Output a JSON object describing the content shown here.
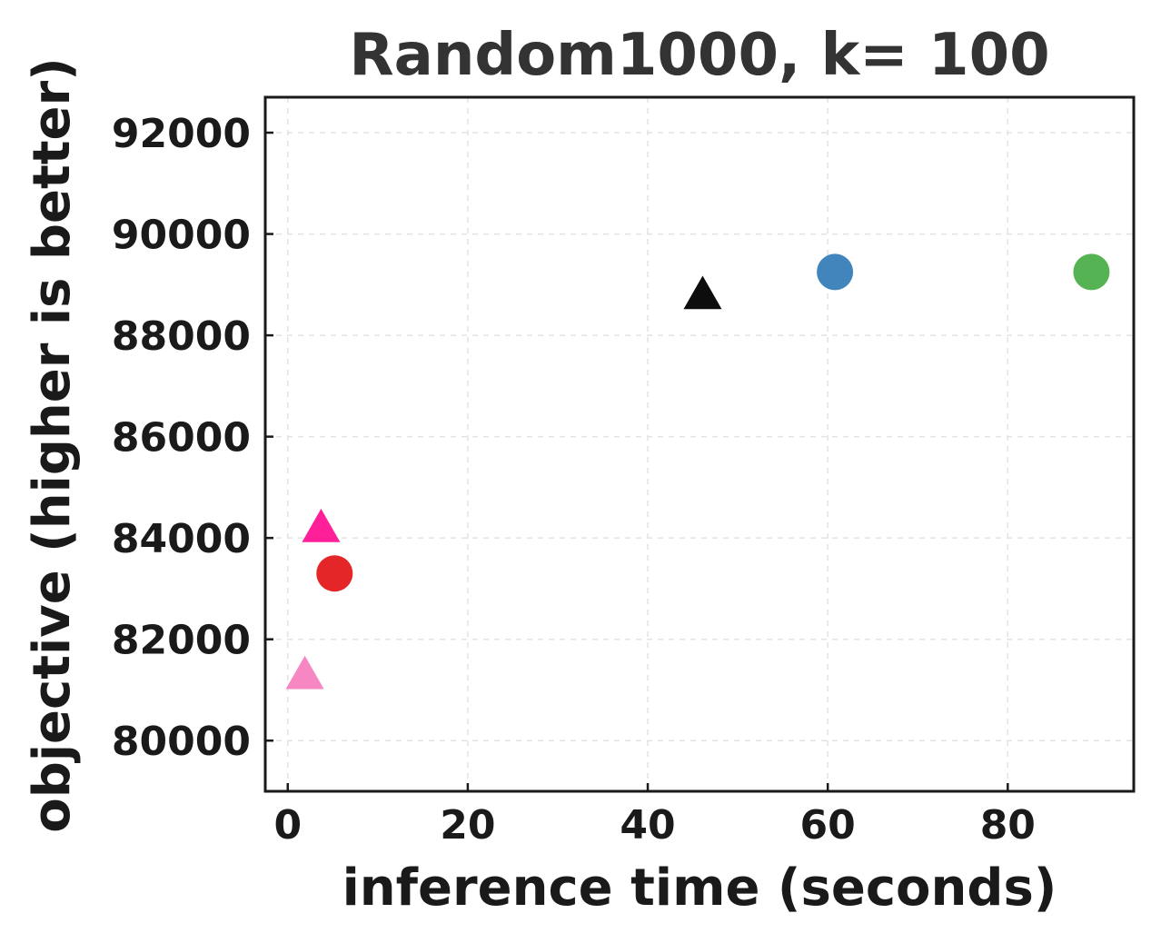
{
  "chart_data": {
    "type": "scatter",
    "title": "Random1000, k= 100",
    "xlabel": "inference time (seconds)",
    "ylabel": "objective (higher is better)",
    "xlim": [
      -2.5,
      94
    ],
    "ylim": [
      79000,
      92700
    ],
    "xticks": [
      0,
      20,
      40,
      60,
      80
    ],
    "yticks": [
      80000,
      82000,
      84000,
      86000,
      88000,
      90000,
      92000
    ],
    "xtick_labels": [
      "0",
      "20",
      "40",
      "60",
      "80"
    ],
    "ytick_labels": [
      "80000",
      "82000",
      "84000",
      "86000",
      "88000",
      "90000",
      "92000"
    ],
    "grid": true,
    "points": [
      {
        "x": 1.9,
        "y": 81300,
        "marker": "triangle",
        "color": "#f781bf"
      },
      {
        "x": 3.7,
        "y": 84200,
        "marker": "triangle",
        "color": "#ff1493"
      },
      {
        "x": 5.2,
        "y": 83300,
        "marker": "circle",
        "color": "#e41a1c"
      },
      {
        "x": 46.1,
        "y": 88800,
        "marker": "triangle",
        "color": "#000000"
      },
      {
        "x": 60.8,
        "y": 89250,
        "marker": "circle",
        "color": "#377eb8"
      },
      {
        "x": 89.3,
        "y": 89250,
        "marker": "circle",
        "color": "#4daf4a"
      }
    ]
  }
}
